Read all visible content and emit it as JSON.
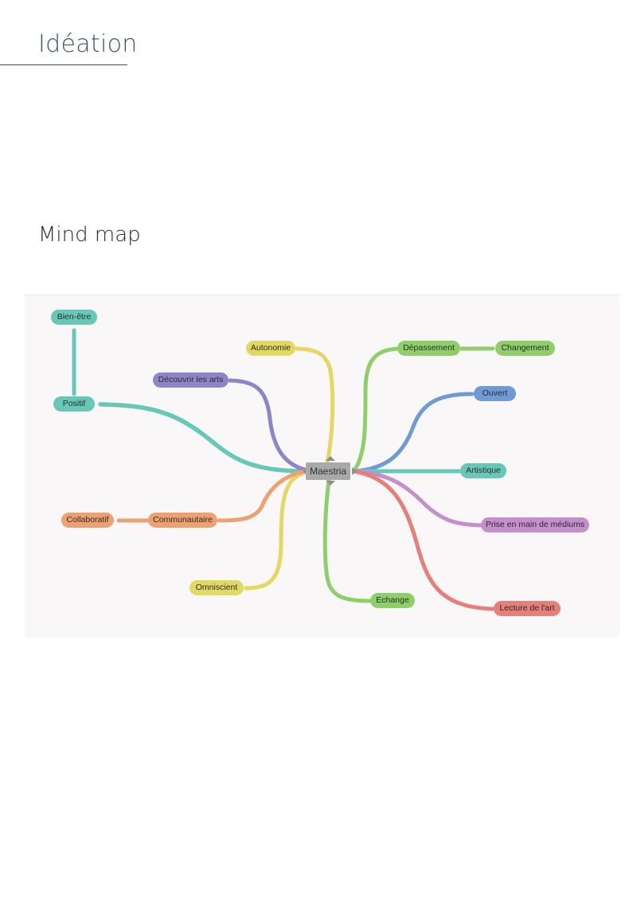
{
  "header": {
    "title": "Idéation",
    "subtitle": "Mind map"
  },
  "mindmap": {
    "center": "Maestria",
    "colors": {
      "teal": "#67c8b8",
      "purple": "#8c86c8",
      "yellow": "#e3d862",
      "green": "#8fcf6a",
      "blue": "#6e9ad6",
      "violet": "#c48fcc",
      "red": "#e57f78",
      "orange": "#eea170",
      "center": "#a9a9a9"
    },
    "nodes": {
      "bien_etre": "Bien-être",
      "positif": "Positif",
      "decouvrir": "Découvrir les arts",
      "autonomie": "Autonomie",
      "depassement": "Dépassement",
      "changement": "Changement",
      "ouvert": "Ouvert",
      "artistique": "Artistique",
      "prise": "Prise en main de médiums",
      "lecture": "Lecture de l'art",
      "echange": "Echange",
      "omniscient": "Omniscient",
      "communautaire": "Communautaire",
      "collaboratif": "Collaboratif"
    }
  }
}
